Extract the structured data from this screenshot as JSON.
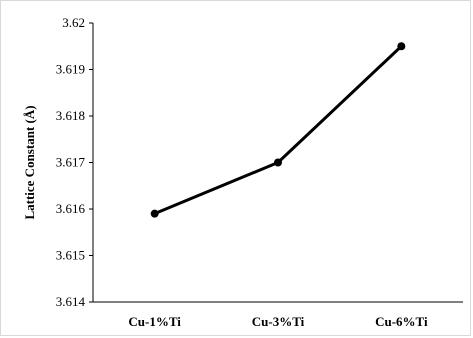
{
  "chart_data": {
    "type": "line",
    "title": "",
    "xlabel": "",
    "ylabel": "Lattice  Constant  (Å)",
    "categories": [
      "Cu-1%Ti",
      "Cu-3%Ti",
      "Cu-6%Ti"
    ],
    "series": [
      {
        "values": [
          3.6159,
          3.617,
          3.6195
        ]
      }
    ],
    "yticks": [
      "3.614",
      "3.615",
      "3.616",
      "3.617",
      "3.618",
      "3.619",
      "3.62"
    ],
    "ylim": [
      3.614,
      3.62
    ],
    "grid": false,
    "legend": "none",
    "line_color": "#000000"
  }
}
